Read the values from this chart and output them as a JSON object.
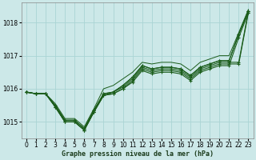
{
  "xlabel": "Graphe pression niveau de la mer (hPa)",
  "x_ticks": [
    0,
    1,
    2,
    3,
    4,
    5,
    6,
    7,
    8,
    9,
    10,
    11,
    12,
    13,
    14,
    15,
    16,
    17,
    18,
    19,
    20,
    21,
    22,
    23
  ],
  "ylim": [
    1014.5,
    1018.6
  ],
  "yticks": [
    1015,
    1016,
    1017,
    1018
  ],
  "bg_color": "#cce8e8",
  "grid_color": "#aad4d4",
  "line_color": "#1a5c1a",
  "series": [
    [
      1015.9,
      1015.85,
      1015.85,
      1015.45,
      1015.0,
      1015.0,
      1014.75,
      1015.3,
      1015.8,
      1015.85,
      1016.0,
      1016.2,
      1016.55,
      1016.45,
      1016.5,
      1016.5,
      1016.45,
      1016.25,
      1016.5,
      1016.6,
      1016.7,
      1016.7,
      1017.55,
      1018.3
    ],
    [
      1015.9,
      1015.85,
      1015.85,
      1015.45,
      1015.0,
      1015.0,
      1014.75,
      1015.3,
      1015.8,
      1015.85,
      1016.0,
      1016.25,
      1016.6,
      1016.5,
      1016.55,
      1016.55,
      1016.5,
      1016.3,
      1016.55,
      1016.65,
      1016.75,
      1016.75,
      1016.75,
      1018.3
    ],
    [
      1015.9,
      1015.85,
      1015.85,
      1015.45,
      1015.0,
      1015.0,
      1014.75,
      1015.3,
      1015.8,
      1015.9,
      1016.05,
      1016.3,
      1016.65,
      1016.55,
      1016.6,
      1016.6,
      1016.55,
      1016.35,
      1016.6,
      1016.7,
      1016.8,
      1016.8,
      1016.8,
      1018.35
    ],
    [
      1015.9,
      1015.85,
      1015.85,
      1015.5,
      1015.05,
      1015.05,
      1014.8,
      1015.35,
      1015.85,
      1015.9,
      1016.1,
      1016.35,
      1016.7,
      1016.6,
      1016.65,
      1016.65,
      1016.6,
      1016.4,
      1016.65,
      1016.75,
      1016.85,
      1016.85,
      1017.65,
      1018.35
    ],
    [
      1015.9,
      1015.85,
      1015.85,
      1015.5,
      1015.05,
      1015.05,
      1014.8,
      1015.35,
      1015.85,
      1015.9,
      1016.1,
      1016.35,
      1016.7,
      1016.6,
      1016.65,
      1016.65,
      1016.6,
      1016.4,
      1016.65,
      1016.75,
      1016.85,
      1016.85,
      1017.65,
      1018.35
    ]
  ],
  "thin_line": [
    1015.9,
    1015.85,
    1015.85,
    1015.55,
    1015.1,
    1015.1,
    1014.85,
    1015.4,
    1016.0,
    1016.1,
    1016.3,
    1016.5,
    1016.8,
    1016.75,
    1016.8,
    1016.8,
    1016.75,
    1016.55,
    1016.8,
    1016.9,
    1017.0,
    1017.0,
    1017.7,
    1018.4
  ]
}
